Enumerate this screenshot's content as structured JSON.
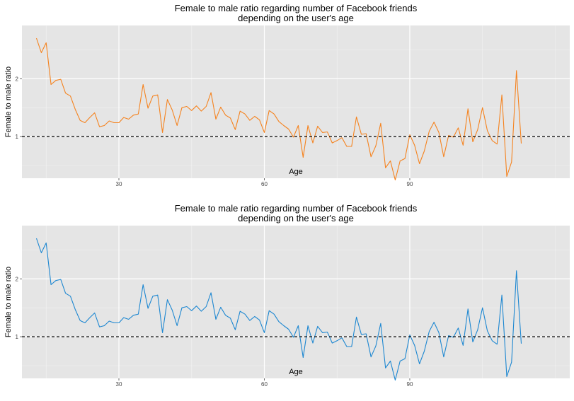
{
  "chart_data": [
    {
      "type": "line",
      "title": [
        "Female to male ratio regarding number of Facebook friends",
        "depending on the user's age"
      ],
      "xlabel": "Age",
      "ylabel": "Female to male ratio",
      "color": "#f5831f",
      "xlim": [
        10,
        123
      ],
      "ylim": [
        0.28,
        2.92
      ],
      "xticks": [
        30,
        60,
        90
      ],
      "xticklabels": [
        "30",
        "60",
        "90"
      ],
      "yticks": [
        1,
        2
      ],
      "yticklabels": [
        "1",
        "2"
      ],
      "hline": 1,
      "x": [
        13,
        14,
        15,
        16,
        17,
        18,
        19,
        20,
        21,
        22,
        23,
        24,
        25,
        26,
        27,
        28,
        29,
        30,
        31,
        32,
        33,
        34,
        35,
        36,
        37,
        38,
        39,
        40,
        41,
        42,
        43,
        44,
        45,
        46,
        47,
        48,
        49,
        50,
        51,
        52,
        53,
        54,
        55,
        56,
        57,
        58,
        59,
        60,
        61,
        62,
        63,
        64,
        65,
        66,
        67,
        68,
        69,
        70,
        71,
        72,
        73,
        74,
        75,
        76,
        77,
        78,
        79,
        80,
        81,
        82,
        83,
        84,
        85,
        86,
        87,
        88,
        89,
        90,
        91,
        92,
        93,
        94,
        95,
        96,
        97,
        98,
        99,
        100,
        101,
        102,
        103,
        104,
        105,
        106,
        107,
        108,
        109,
        110,
        111,
        112,
        113
      ],
      "values": [
        2.7,
        2.45,
        2.62,
        1.9,
        1.97,
        1.99,
        1.75,
        1.7,
        1.47,
        1.28,
        1.24,
        1.33,
        1.41,
        1.17,
        1.19,
        1.27,
        1.24,
        1.24,
        1.33,
        1.3,
        1.37,
        1.39,
        1.9,
        1.49,
        1.7,
        1.72,
        1.07,
        1.64,
        1.46,
        1.19,
        1.5,
        1.52,
        1.45,
        1.53,
        1.44,
        1.52,
        1.76,
        1.3,
        1.51,
        1.37,
        1.32,
        1.12,
        1.44,
        1.39,
        1.28,
        1.35,
        1.29,
        1.07,
        1.45,
        1.39,
        1.26,
        1.19,
        1.13,
        0.99,
        1.19,
        0.64,
        1.19,
        0.89,
        1.18,
        1.07,
        1.08,
        0.89,
        0.93,
        0.98,
        0.83,
        0.83,
        1.34,
        1.04,
        1.05,
        0.65,
        0.84,
        1.23,
        0.46,
        0.58,
        0.25,
        0.58,
        0.62,
        1.03,
        0.85,
        0.53,
        0.75,
        1.09,
        1.25,
        1.07,
        0.65,
        1.02,
        0.99,
        1.15,
        0.85,
        1.48,
        0.91,
        1.12,
        1.5,
        1.1,
        0.93,
        0.87,
        1.72,
        0.31,
        0.56,
        2.14,
        0.88
      ]
    },
    {
      "type": "line",
      "title": [
        "Female to male ratio regarding number of Facebook friends",
        "depending on the user's age"
      ],
      "xlabel": "Age",
      "ylabel": "Female to male ratio",
      "color": "#1d87d1",
      "xlim": [
        10,
        123
      ],
      "ylim": [
        0.28,
        2.92
      ],
      "xticks": [
        30,
        60,
        90
      ],
      "xticklabels": [
        "30",
        "60",
        "90"
      ],
      "yticks": [
        1,
        2
      ],
      "yticklabels": [
        "1",
        "2"
      ],
      "hline": 1,
      "x": [
        13,
        14,
        15,
        16,
        17,
        18,
        19,
        20,
        21,
        22,
        23,
        24,
        25,
        26,
        27,
        28,
        29,
        30,
        31,
        32,
        33,
        34,
        35,
        36,
        37,
        38,
        39,
        40,
        41,
        42,
        43,
        44,
        45,
        46,
        47,
        48,
        49,
        50,
        51,
        52,
        53,
        54,
        55,
        56,
        57,
        58,
        59,
        60,
        61,
        62,
        63,
        64,
        65,
        66,
        67,
        68,
        69,
        70,
        71,
        72,
        73,
        74,
        75,
        76,
        77,
        78,
        79,
        80,
        81,
        82,
        83,
        84,
        85,
        86,
        87,
        88,
        89,
        90,
        91,
        92,
        93,
        94,
        95,
        96,
        97,
        98,
        99,
        100,
        101,
        102,
        103,
        104,
        105,
        106,
        107,
        108,
        109,
        110,
        111,
        112,
        113
      ],
      "values": [
        2.7,
        2.45,
        2.62,
        1.9,
        1.97,
        1.99,
        1.75,
        1.7,
        1.47,
        1.28,
        1.24,
        1.33,
        1.41,
        1.17,
        1.19,
        1.27,
        1.24,
        1.24,
        1.33,
        1.3,
        1.37,
        1.39,
        1.9,
        1.49,
        1.7,
        1.72,
        1.07,
        1.64,
        1.46,
        1.19,
        1.5,
        1.52,
        1.45,
        1.53,
        1.44,
        1.52,
        1.76,
        1.3,
        1.51,
        1.37,
        1.32,
        1.12,
        1.44,
        1.39,
        1.28,
        1.35,
        1.29,
        1.07,
        1.45,
        1.39,
        1.26,
        1.19,
        1.13,
        0.99,
        1.19,
        0.64,
        1.19,
        0.89,
        1.18,
        1.07,
        1.08,
        0.89,
        0.93,
        0.98,
        0.83,
        0.83,
        1.34,
        1.04,
        1.05,
        0.65,
        0.84,
        1.23,
        0.46,
        0.58,
        0.25,
        0.58,
        0.62,
        1.03,
        0.85,
        0.53,
        0.75,
        1.09,
        1.25,
        1.07,
        0.65,
        1.02,
        0.99,
        1.15,
        0.85,
        1.48,
        0.91,
        1.12,
        1.5,
        1.1,
        0.93,
        0.87,
        1.72,
        0.31,
        0.56,
        2.14,
        0.88
      ]
    }
  ]
}
